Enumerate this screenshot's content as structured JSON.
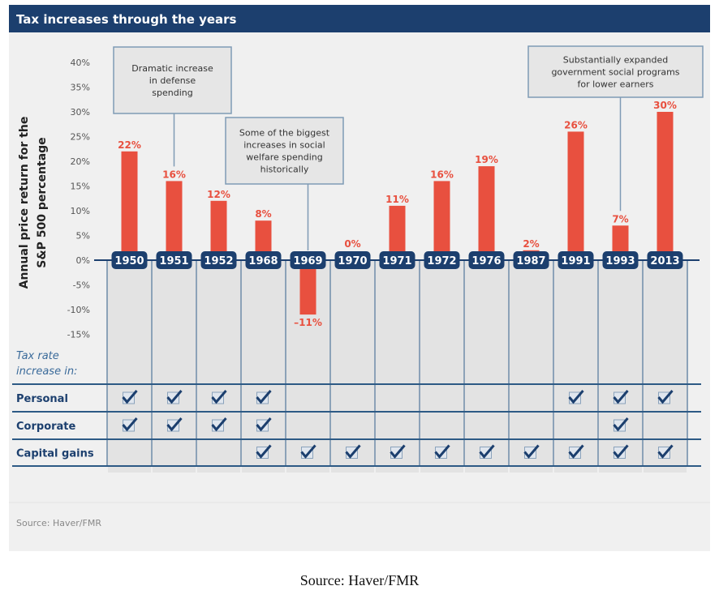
{
  "title": "Tax increases through the years",
  "source_inner": "Source: Haver/FMR",
  "caption": "Source: Haver/FMR",
  "colors": {
    "header": "#1c3f6e",
    "bar": "#e8503f",
    "panel": "#f0f0f0",
    "column": "#e3e3e3"
  },
  "chart_data": {
    "type": "bar",
    "ylabel": "Annual price return for the S&P 500 percentage",
    "ylim": [
      -15,
      40
    ],
    "yticks": [
      "40%",
      "35%",
      "30%",
      "25%",
      "20%",
      "15%",
      "10%",
      "5%",
      "0%",
      "-5%",
      "-10%",
      "-15%"
    ],
    "categories": [
      "1950",
      "1951",
      "1952",
      "1968",
      "1969",
      "1970",
      "1971",
      "1972",
      "1976",
      "1987",
      "1991",
      "1993",
      "2013"
    ],
    "values": [
      22,
      16,
      12,
      8,
      -11,
      0,
      11,
      16,
      19,
      2,
      26,
      7,
      30
    ],
    "data_labels": [
      "22%",
      "16%",
      "12%",
      "8%",
      "–11%",
      "0%",
      "11%",
      "16%",
      "19%",
      "2%",
      "26%",
      "7%",
      "30%"
    ],
    "annotations": [
      {
        "text": [
          "Dramatic increase",
          "in defense",
          "spending"
        ],
        "points_to": "1951"
      },
      {
        "text": [
          "Some of the biggest",
          "increases in social",
          "welfare spending",
          "historically"
        ],
        "points_to": "1969"
      },
      {
        "text": [
          "Substantially expanded",
          "government social programs",
          "for lower earners"
        ],
        "points_to": "1993"
      }
    ],
    "table": {
      "label": [
        "Tax rate",
        "increase in:"
      ],
      "rows": [
        {
          "name": "Personal",
          "checked": [
            true,
            true,
            true,
            true,
            false,
            false,
            false,
            false,
            false,
            false,
            true,
            true,
            true
          ]
        },
        {
          "name": "Corporate",
          "checked": [
            true,
            true,
            true,
            true,
            false,
            false,
            false,
            false,
            false,
            false,
            false,
            true,
            false
          ]
        },
        {
          "name": "Capital gains",
          "checked": [
            false,
            false,
            false,
            true,
            true,
            true,
            true,
            true,
            true,
            true,
            true,
            true,
            true
          ]
        }
      ]
    }
  }
}
